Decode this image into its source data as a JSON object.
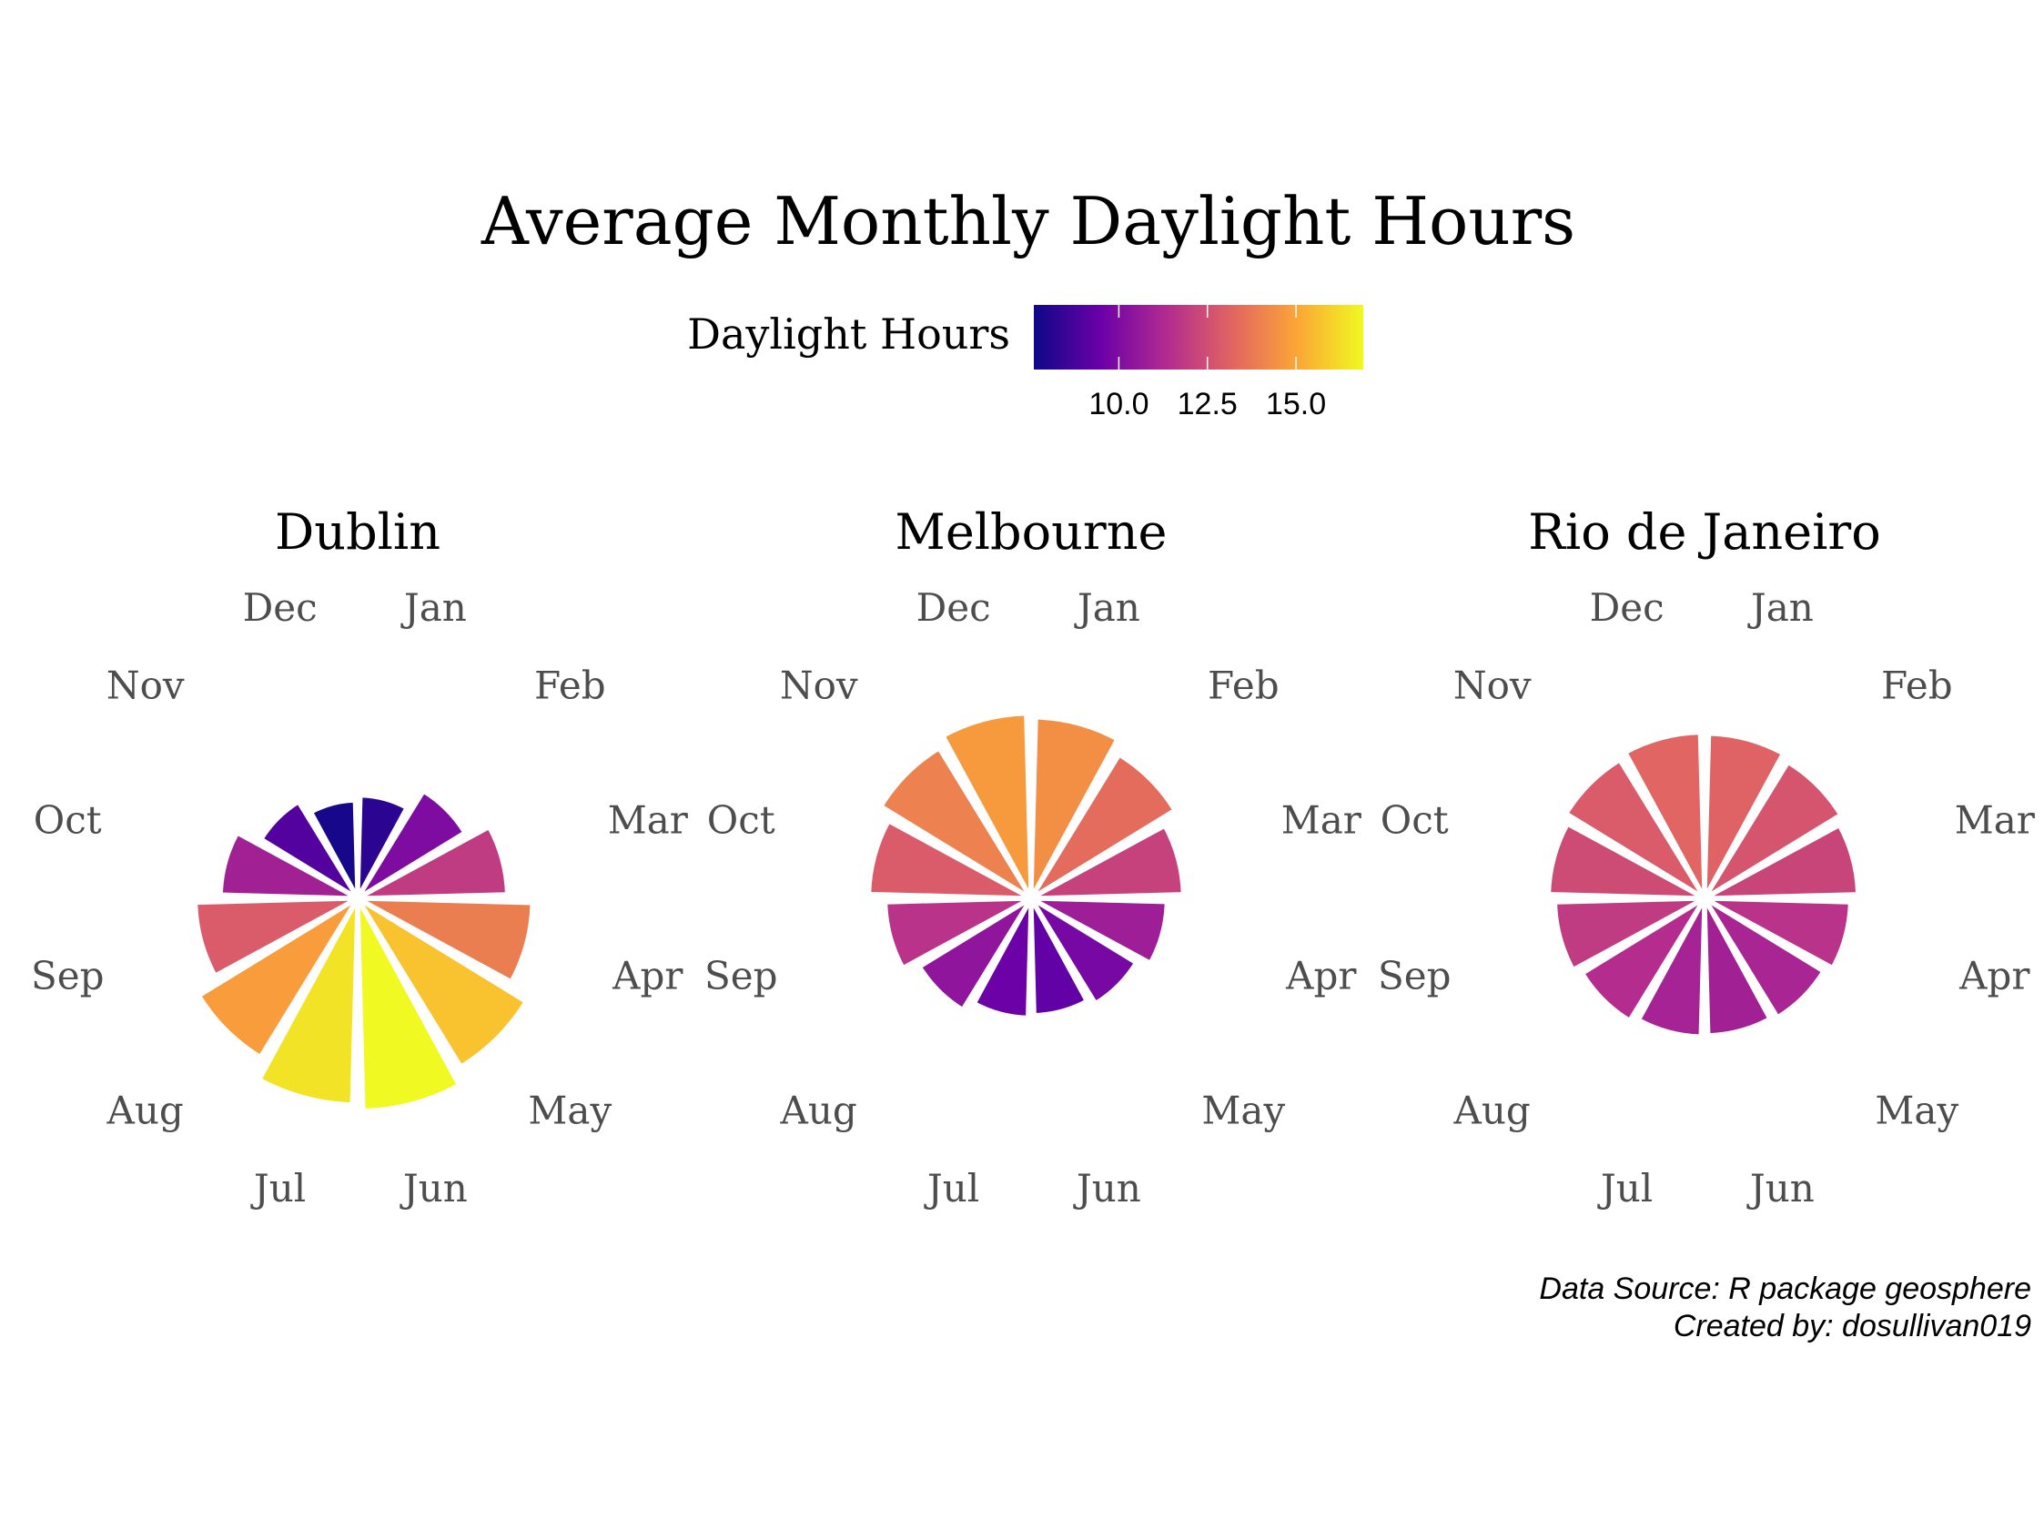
{
  "chart_data": {
    "type": "polar-bar",
    "title": "Average Monthly Daylight Hours",
    "legend": {
      "title": "Daylight Hours",
      "ticks": [
        10.0,
        12.5,
        15.0
      ],
      "tick_labels": [
        "10.0",
        "12.5",
        "15.0"
      ],
      "min": 7.6,
      "max": 16.9,
      "placement": "top",
      "palette": [
        "#0d0887",
        "#6a00a8",
        "#b12a90",
        "#e16462",
        "#fca636",
        "#f0f921"
      ]
    },
    "months": [
      "Jan",
      "Feb",
      "Mar",
      "Apr",
      "May",
      "Jun",
      "Jul",
      "Aug",
      "Sep",
      "Oct",
      "Nov",
      "Dec"
    ],
    "panels": [
      {
        "name": "Dublin",
        "values": [
          8.2,
          10.0,
          11.9,
          13.9,
          15.7,
          16.9,
          16.4,
          14.8,
          12.9,
          10.9,
          9.0,
          7.8
        ]
      },
      {
        "name": "Melbourne",
        "values": [
          14.4,
          13.4,
          12.1,
          10.8,
          9.8,
          9.3,
          9.5,
          10.4,
          11.6,
          12.9,
          14.0,
          14.7
        ]
      },
      {
        "name": "Rio de Janeiro",
        "values": [
          13.1,
          12.7,
          12.2,
          11.6,
          11.1,
          10.9,
          11.0,
          11.4,
          11.9,
          12.4,
          12.9,
          13.2
        ]
      }
    ],
    "radial_max": 17.0,
    "grid": false
  },
  "caption": {
    "line1": "Data Source: R package geosphere",
    "line2": "Created by: dosullivan019"
  }
}
